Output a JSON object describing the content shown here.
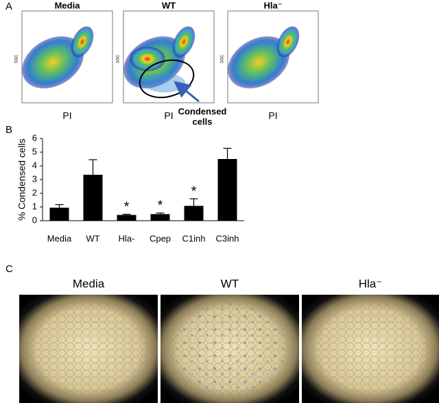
{
  "panel_labels": [
    "A",
    "B",
    "C"
  ],
  "panel_a": {
    "plots": [
      {
        "title": "Media",
        "x_label": "PI",
        "y_label": "SSC"
      },
      {
        "title": "WT",
        "x_label": "PI",
        "y_label": "SSC"
      },
      {
        "title": "Hla⁻",
        "x_label": "PI",
        "y_label": "SSC"
      }
    ],
    "annotation": "Condensed cells"
  },
  "chart_data": {
    "type": "bar",
    "y_label": "% Condensed cells",
    "categories": [
      "Media",
      "WT",
      "Hla-",
      "Cpep",
      "C1inh",
      "C3inh"
    ],
    "values": [
      0.95,
      3.35,
      0.42,
      0.48,
      1.08,
      4.5
    ],
    "errors": [
      0.22,
      1.1,
      0.05,
      0.08,
      0.52,
      0.78
    ],
    "significance": [
      null,
      null,
      "*",
      "*",
      "*",
      null
    ],
    "color": "#000000",
    "ylim": [
      0,
      6
    ],
    "yticks": [
      0,
      1,
      2,
      3,
      4,
      5,
      6
    ]
  },
  "panel_c": {
    "titles": [
      "Media",
      "WT",
      "Hla⁻"
    ]
  }
}
